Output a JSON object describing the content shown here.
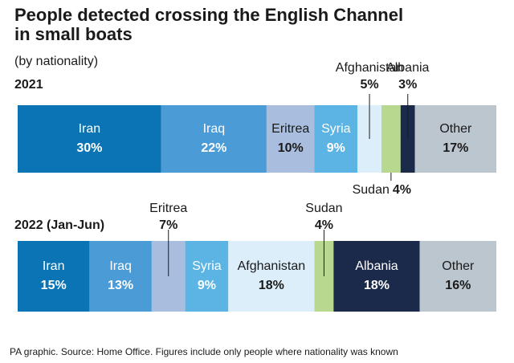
{
  "chart_data": {
    "type": "bar",
    "orientation": "horizontal",
    "stacked": true,
    "title": "People detected crossing the English Channel in small boats",
    "subtitle": "(by nationality)",
    "source": "PA graphic. Source: Home Office. Figures include only people where nationality was known",
    "categories": [
      "2021",
      "2022 (Jan-Jun)"
    ],
    "xlim": [
      0,
      100
    ],
    "series": [
      {
        "name": "Iran",
        "color": "#0b74b5",
        "values": [
          30,
          15
        ],
        "value_labels": [
          "30%",
          "15%"
        ]
      },
      {
        "name": "Iraq",
        "color": "#4a9bd6",
        "values": [
          22,
          13
        ],
        "value_labels": [
          "22%",
          "13%"
        ]
      },
      {
        "name": "Eritrea",
        "color": "#a9bedf",
        "values": [
          10,
          7
        ],
        "value_labels": [
          "10%",
          "7%"
        ]
      },
      {
        "name": "Syria",
        "color": "#5bb4e3",
        "values": [
          9,
          9
        ],
        "value_labels": [
          "9%",
          "9%"
        ]
      },
      {
        "name": "Afghanistan",
        "color": "#dceefa",
        "values": [
          5,
          18
        ],
        "value_labels": [
          "5%",
          "18%"
        ]
      },
      {
        "name": "Sudan",
        "color": "#b8d88f",
        "values": [
          4,
          4
        ],
        "value_labels": [
          "4%",
          "4%"
        ]
      },
      {
        "name": "Albania",
        "color": "#1b2a4a",
        "values": [
          3,
          18
        ],
        "value_labels": [
          "3%",
          "18%"
        ]
      },
      {
        "name": "Other",
        "color": "#bcc6cf",
        "values": [
          17,
          16
        ],
        "value_labels": [
          "17%",
          "16%"
        ]
      }
    ]
  }
}
